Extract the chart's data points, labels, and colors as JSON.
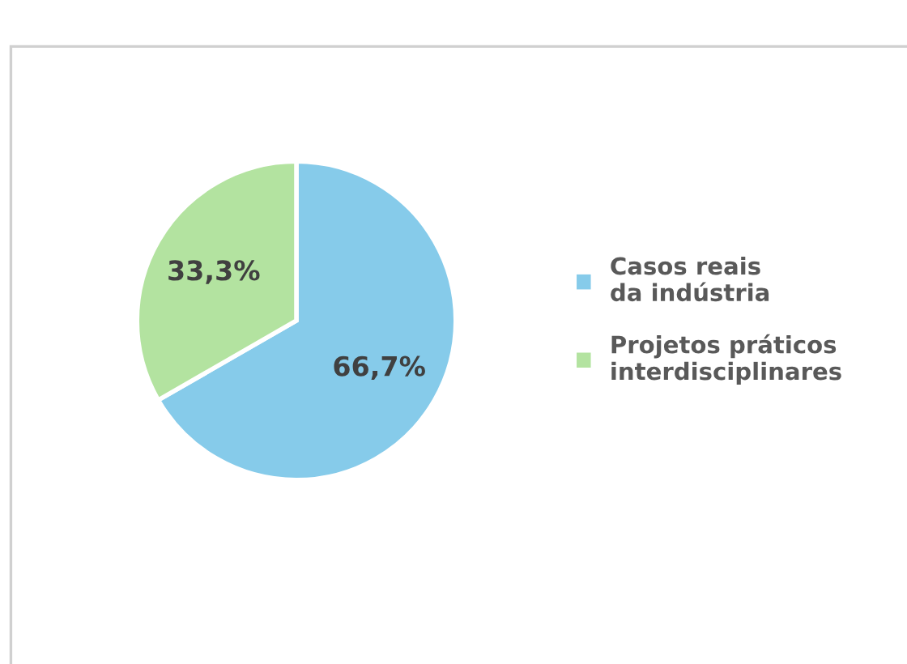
{
  "chart_data": {
    "type": "pie",
    "categories": [
      "Casos reais da indústria",
      "Projetos práticos interdisciplinares"
    ],
    "values": [
      66.7,
      33.3
    ],
    "colors": [
      "#86cbea",
      "#b3e3a0"
    ],
    "value_labels": [
      "66,7%",
      "33,3%"
    ],
    "legend": "right"
  }
}
